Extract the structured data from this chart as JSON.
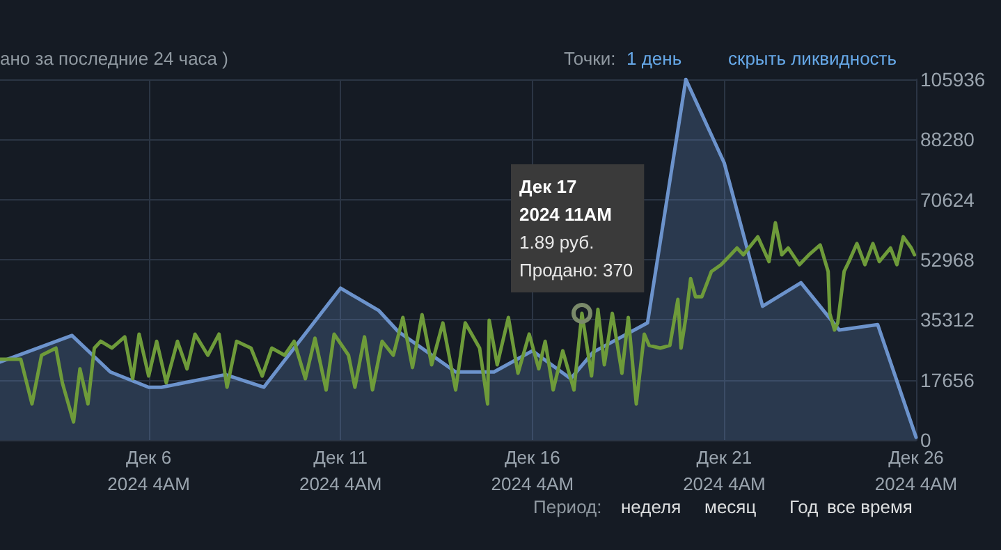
{
  "chart_data": {
    "type": "line",
    "xlim": [
      "2024-12-02T07:00",
      "2024-12-26T04:00"
    ],
    "xticks": [
      {
        "value": "2024-12-06T04:00",
        "label": "Дек 6\n2024 4AM"
      },
      {
        "value": "2024-12-11T04:00",
        "label": "Дек 11\n2024 4AM"
      },
      {
        "value": "2024-12-16T04:00",
        "label": "Дек 16\n2024 4AM"
      },
      {
        "value": "2024-12-21T04:00",
        "label": "Дек 21\n2024 4AM"
      },
      {
        "value": "2024-12-26T04:00",
        "label": "Дек 26\n2024 4AM"
      }
    ],
    "ylim": [
      0,
      105936
    ],
    "yticks": [
      0,
      17656,
      35312,
      52968,
      70624,
      88280,
      105936
    ],
    "grid": true,
    "marker": "none",
    "series": [
      {
        "type": "area",
        "color": "#6c93cc",
        "x": [
          "2024-12-02T07:00",
          "2024-12-04T04:00",
          "2024-12-05T04:00",
          "2024-12-06T04:00",
          "2024-12-06T12:00",
          "2024-12-08T04:00",
          "2024-12-09T04:00",
          "2024-12-11T04:00",
          "2024-12-12T04:00",
          "2024-12-12T16:00",
          "2024-12-14T04:00",
          "2024-12-15T04:00",
          "2024-12-16T04:00",
          "2024-12-17T04:00",
          "2024-12-17T18:00",
          "2024-12-19T04:00",
          "2024-12-20T04:00",
          "2024-12-21T04:00",
          "2024-12-22T04:00",
          "2024-12-23T04:00",
          "2024-12-24T04:00",
          "2024-12-25T04:00",
          "2024-12-26T04:00"
        ],
        "values": [
          22900,
          30700,
          20000,
          15500,
          15500,
          19200,
          15500,
          44600,
          38000,
          31900,
          20000,
          20000,
          26200,
          18000,
          25800,
          34400,
          105936,
          81400,
          39300,
          46200,
          32300,
          33900,
          800
        ]
      },
      {
        "color": "#6e9b3a",
        "x": [
          "2024-12-02T07:00",
          "2024-12-02T20:00",
          "2024-12-03T03:00",
          "2024-12-03T09:00",
          "2024-12-03T18:00",
          "2024-12-03T22:00",
          "2024-12-04T05:00",
          "2024-12-04T09:00",
          "2024-12-04T14:00",
          "2024-12-04T18:00",
          "2024-12-04T22:00",
          "2024-12-05T05:00",
          "2024-12-05T13:00",
          "2024-12-05T18:00",
          "2024-12-05T22:00",
          "2024-12-06T04:00",
          "2024-12-06T09:00",
          "2024-12-06T15:00",
          "2024-12-06T22:00",
          "2024-12-07T04:00",
          "2024-12-07T09:00",
          "2024-12-07T17:00",
          "2024-12-08T00:00",
          "2024-12-08T05:00",
          "2024-12-08T11:00",
          "2024-12-08T20:00",
          "2024-12-09T03:00",
          "2024-12-09T09:00",
          "2024-12-09T17:00",
          "2024-12-09T23:00",
          "2024-12-10T06:00",
          "2024-12-10T12:00",
          "2024-12-10T19:00",
          "2024-12-11T00:00",
          "2024-12-11T09:00",
          "2024-12-11T13:00",
          "2024-12-11T19:00",
          "2024-12-12T00:00",
          "2024-12-12T06:00",
          "2024-12-12T13:00",
          "2024-12-12T19:00",
          "2024-12-13T01:00",
          "2024-12-13T07:00",
          "2024-12-13T13:00",
          "2024-12-13T20:00",
          "2024-12-14T04:00",
          "2024-12-14T10:00",
          "2024-12-14T19:00",
          "2024-12-15T00:00",
          "2024-12-15T01:00",
          "2024-12-15T06:00",
          "2024-12-15T13:00",
          "2024-12-15T19:00",
          "2024-12-16T02:00",
          "2024-12-16T08:00",
          "2024-12-16T12:00",
          "2024-12-16T17:00",
          "2024-12-16T23:00",
          "2024-12-17T06:00",
          "2024-12-17T11:00",
          "2024-12-17T17:00",
          "2024-12-17T21:00",
          "2024-12-18T01:00",
          "2024-12-18T06:00",
          "2024-12-18T12:00",
          "2024-12-18T16:00",
          "2024-12-18T21:00",
          "2024-12-19T02:00",
          "2024-12-19T05:00",
          "2024-12-19T12:00",
          "2024-12-19T18:00",
          "2024-12-19T23:00",
          "2024-12-20T01:00",
          "2024-12-20T04:00",
          "2024-12-20T07:00",
          "2024-12-20T10:00",
          "2024-12-20T14:00",
          "2024-12-20T20:00",
          "2024-12-21T02:00",
          "2024-12-21T08:00",
          "2024-12-21T12:00",
          "2024-12-21T16:00",
          "2024-12-22T01:00",
          "2024-12-22T08:00",
          "2024-12-22T12:00",
          "2024-12-22T16:00",
          "2024-12-22T20:00",
          "2024-12-23T03:00",
          "2024-12-23T09:00",
          "2024-12-23T16:00",
          "2024-12-23T21:00",
          "2024-12-23T22:00",
          "2024-12-24T01:00",
          "2024-12-24T03:00",
          "2024-12-24T07:00",
          "2024-12-24T10:00",
          "2024-12-24T15:00",
          "2024-12-24T20:00",
          "2024-12-25T01:00",
          "2024-12-25T05:00",
          "2024-12-25T12:00",
          "2024-12-25T16:00",
          "2024-12-25T20:00",
          "2024-12-26T01:00",
          "2024-12-26T03:00"
        ],
        "values": [
          23700,
          23700,
          10600,
          24900,
          27000,
          16800,
          5300,
          20900,
          10600,
          27000,
          29000,
          27000,
          30300,
          18000,
          31100,
          18800,
          29000,
          16800,
          29000,
          20900,
          31100,
          24900,
          31100,
          15500,
          29000,
          27000,
          18800,
          27000,
          24900,
          29000,
          18000,
          29900,
          14700,
          31100,
          24900,
          15500,
          30300,
          14700,
          29000,
          24900,
          36000,
          21300,
          36800,
          22100,
          34400,
          14700,
          34400,
          27000,
          10600,
          35200,
          22100,
          36000,
          19600,
          31100,
          20900,
          29000,
          14700,
          26200,
          14700,
          37200,
          18800,
          38400,
          22100,
          37200,
          19600,
          36000,
          10600,
          31100,
          27800,
          27000,
          27800,
          41300,
          27000,
          36000,
          47400,
          42100,
          42100,
          49500,
          51500,
          54400,
          56400,
          54400,
          59700,
          52400,
          63800,
          54400,
          56400,
          51500,
          54400,
          57300,
          49500,
          37200,
          32300,
          34400,
          49500,
          52400,
          57700,
          51500,
          57700,
          52400,
          56400,
          51500,
          59700,
          56400,
          54400
        ]
      }
    ],
    "annotations": [
      "ано за последние 24 часа )",
      "Точки:",
      "1 день",
      "скрыть ликвидность",
      "Период:",
      "неделя",
      "месяц",
      "Год",
      "все время",
      {
        "text": "Дек 17\n2024 11AM\n1.89 руб.\nПродано: 370",
        "x": "2024-12-17T11:00",
        "y": 37200
      }
    ]
  }
}
